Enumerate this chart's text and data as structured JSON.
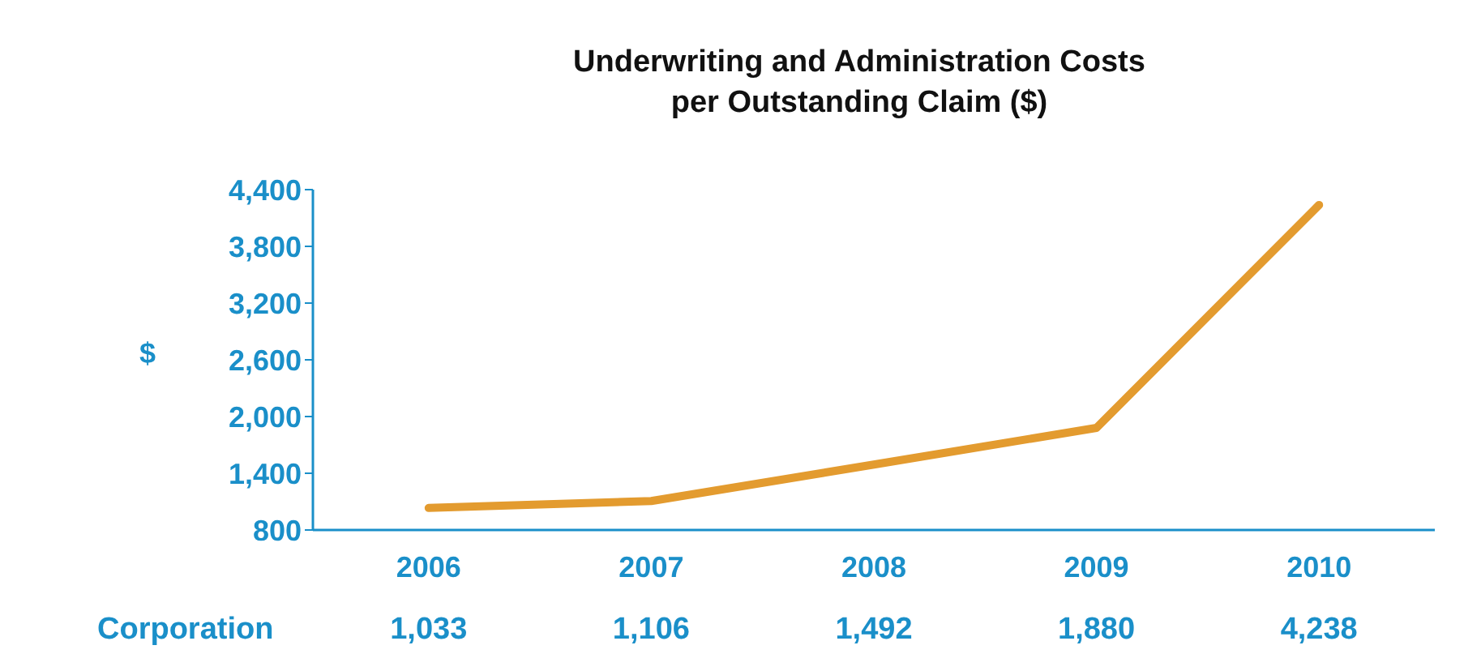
{
  "chart_data": {
    "type": "line",
    "title": "Underwriting and Administration Costs\nper Outstanding Claim ($)",
    "ylabel": "$",
    "categories": [
      "2006",
      "2007",
      "2008",
      "2009",
      "2010"
    ],
    "series": [
      {
        "name": "Corporation",
        "color": "#e39b2f",
        "values": [
          1033,
          1106,
          1492,
          1880,
          4238
        ],
        "value_labels": [
          "1,033",
          "1,106",
          "1,492",
          "1,880",
          "4,238"
        ]
      }
    ],
    "ylim": [
      800,
      4400
    ],
    "yticks": [
      800,
      {
        "value": 1400,
        "label": "1,400"
      },
      {
        "value": 2000,
        "label": "2,000"
      },
      {
        "value": 2600,
        "label": "2,600"
      },
      {
        "value": 3200,
        "label": "3,200"
      },
      {
        "value": 3800,
        "label": "3,800"
      },
      {
        "value": 4400,
        "label": "4,400"
      }
    ],
    "grid": false,
    "legend": false,
    "marker": "none",
    "line_style": "solid"
  }
}
